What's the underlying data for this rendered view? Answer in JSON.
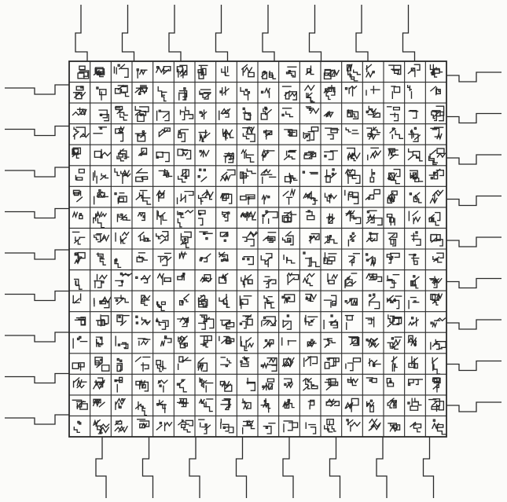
{
  "figure": {
    "kind": "engraved grid of 18 x 18 seal-script style characters with stepped tabs on all four sides",
    "grid": {
      "rows": 18,
      "cols": 18
    },
    "tabs": {
      "top": 8,
      "bottom": 8,
      "left": 9,
      "right": 9
    },
    "ink_color": "#2a2a2a",
    "paper_color": "#fbfbf9"
  }
}
